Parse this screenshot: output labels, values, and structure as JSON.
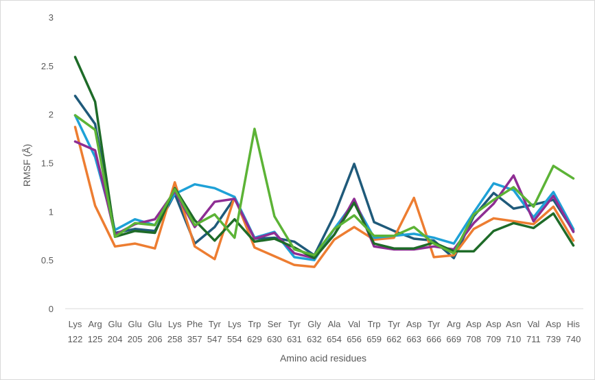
{
  "chart_data": {
    "type": "line",
    "title": "",
    "xlabel": "Amino acid residues",
    "ylabel": "RMSF (Å)",
    "ylim": [
      0,
      3
    ],
    "yticks": [
      "0",
      "0.5",
      "1",
      "1.5",
      "2",
      "2.5",
      "3"
    ],
    "grid": false,
    "legend": "none",
    "categories": [
      {
        "name": "Lys",
        "num": "122"
      },
      {
        "name": "Arg",
        "num": "125"
      },
      {
        "name": "Glu",
        "num": "204"
      },
      {
        "name": "Glu",
        "num": "205"
      },
      {
        "name": "Glu",
        "num": "206"
      },
      {
        "name": "Lys",
        "num": "258"
      },
      {
        "name": "Phe",
        "num": "357"
      },
      {
        "name": "Tyr",
        "num": "547"
      },
      {
        "name": "Lys",
        "num": "554"
      },
      {
        "name": "Trp",
        "num": "629"
      },
      {
        "name": "Ser",
        "num": "630"
      },
      {
        "name": "Tyr",
        "num": "631"
      },
      {
        "name": "Gly",
        "num": "632"
      },
      {
        "name": "Ala",
        "num": "654"
      },
      {
        "name": "Val",
        "num": "656"
      },
      {
        "name": "Trp",
        "num": "659"
      },
      {
        "name": "Tyr",
        "num": "662"
      },
      {
        "name": "Asp",
        "num": "663"
      },
      {
        "name": "Tyr",
        "num": "666"
      },
      {
        "name": "Arg",
        "num": "669"
      },
      {
        "name": "Asp",
        "num": "708"
      },
      {
        "name": "Asp",
        "num": "709"
      },
      {
        "name": "Asn",
        "num": "710"
      },
      {
        "name": "Val",
        "num": "711"
      },
      {
        "name": "Asp",
        "num": "739"
      },
      {
        "name": "His",
        "num": "740"
      }
    ],
    "series": [
      {
        "color": "#1f5a7a",
        "values": [
          2.19,
          1.9,
          0.78,
          0.82,
          0.8,
          1.18,
          0.67,
          0.84,
          1.14,
          0.72,
          0.73,
          0.69,
          0.55,
          0.96,
          1.49,
          0.89,
          0.8,
          0.72,
          0.7,
          0.52,
          0.95,
          1.19,
          1.03,
          1.07,
          1.12,
          0.8
        ]
      },
      {
        "color": "#ed7d31",
        "values": [
          1.87,
          1.06,
          0.64,
          0.67,
          0.62,
          1.3,
          0.64,
          0.51,
          1.15,
          0.63,
          0.54,
          0.45,
          0.43,
          0.71,
          0.84,
          0.71,
          0.73,
          1.14,
          0.53,
          0.55,
          0.82,
          0.93,
          0.9,
          0.87,
          1.05,
          0.7
        ]
      },
      {
        "color": "#1ea1d7",
        "values": [
          1.99,
          1.56,
          0.81,
          0.92,
          0.86,
          1.18,
          1.28,
          1.24,
          1.15,
          0.73,
          0.79,
          0.53,
          0.5,
          0.82,
          1.1,
          0.73,
          0.75,
          0.77,
          0.73,
          0.67,
          0.99,
          1.29,
          1.22,
          0.94,
          1.2,
          0.82
        ]
      },
      {
        "color": "#8e2d93",
        "values": [
          1.72,
          1.63,
          0.76,
          0.87,
          0.92,
          1.21,
          0.84,
          1.1,
          1.13,
          0.72,
          0.78,
          0.57,
          0.52,
          0.76,
          1.13,
          0.64,
          0.61,
          0.61,
          0.64,
          0.61,
          0.88,
          1.08,
          1.37,
          0.9,
          1.16,
          0.79
        ]
      },
      {
        "color": "#1e6b28",
        "values": [
          2.59,
          2.13,
          0.74,
          0.8,
          0.78,
          1.24,
          0.91,
          0.7,
          0.92,
          0.69,
          0.72,
          0.63,
          0.52,
          0.76,
          1.09,
          0.67,
          0.62,
          0.62,
          0.68,
          0.59,
          0.59,
          0.8,
          0.88,
          0.83,
          0.98,
          0.65
        ]
      },
      {
        "color": "#5cb336",
        "values": [
          1.99,
          1.84,
          0.74,
          0.88,
          0.86,
          1.23,
          0.86,
          0.97,
          0.73,
          1.85,
          0.95,
          0.61,
          0.55,
          0.82,
          0.96,
          0.75,
          0.75,
          0.84,
          0.67,
          0.57,
          0.97,
          1.12,
          1.25,
          1.05,
          1.47,
          1.34
        ]
      }
    ]
  }
}
